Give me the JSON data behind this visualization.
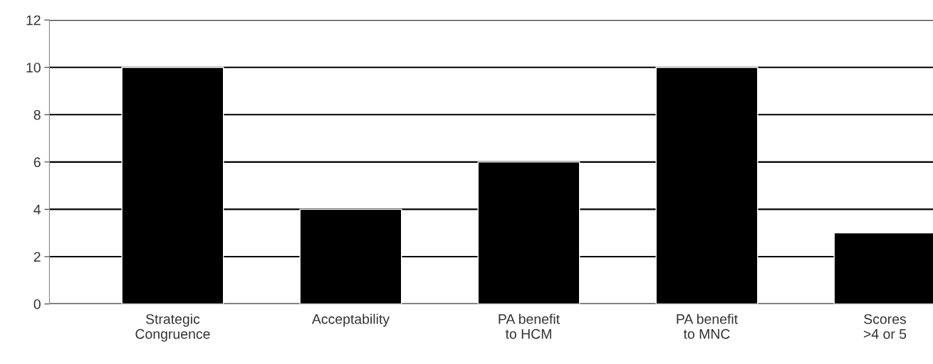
{
  "chart_data": {
    "type": "bar",
    "categories": [
      "Strategic\nCongruence",
      "Acceptability",
      "PA benefit\nto HCM",
      "PA benefit\nto MNC",
      "Scores\n>4 or 5"
    ],
    "values": [
      10,
      4,
      6,
      10,
      3
    ],
    "color": "#000000",
    "ylim": [
      0,
      12
    ],
    "yticks": [
      0,
      2,
      4,
      6,
      8,
      10,
      12
    ],
    "grid": "y",
    "legend": false
  }
}
